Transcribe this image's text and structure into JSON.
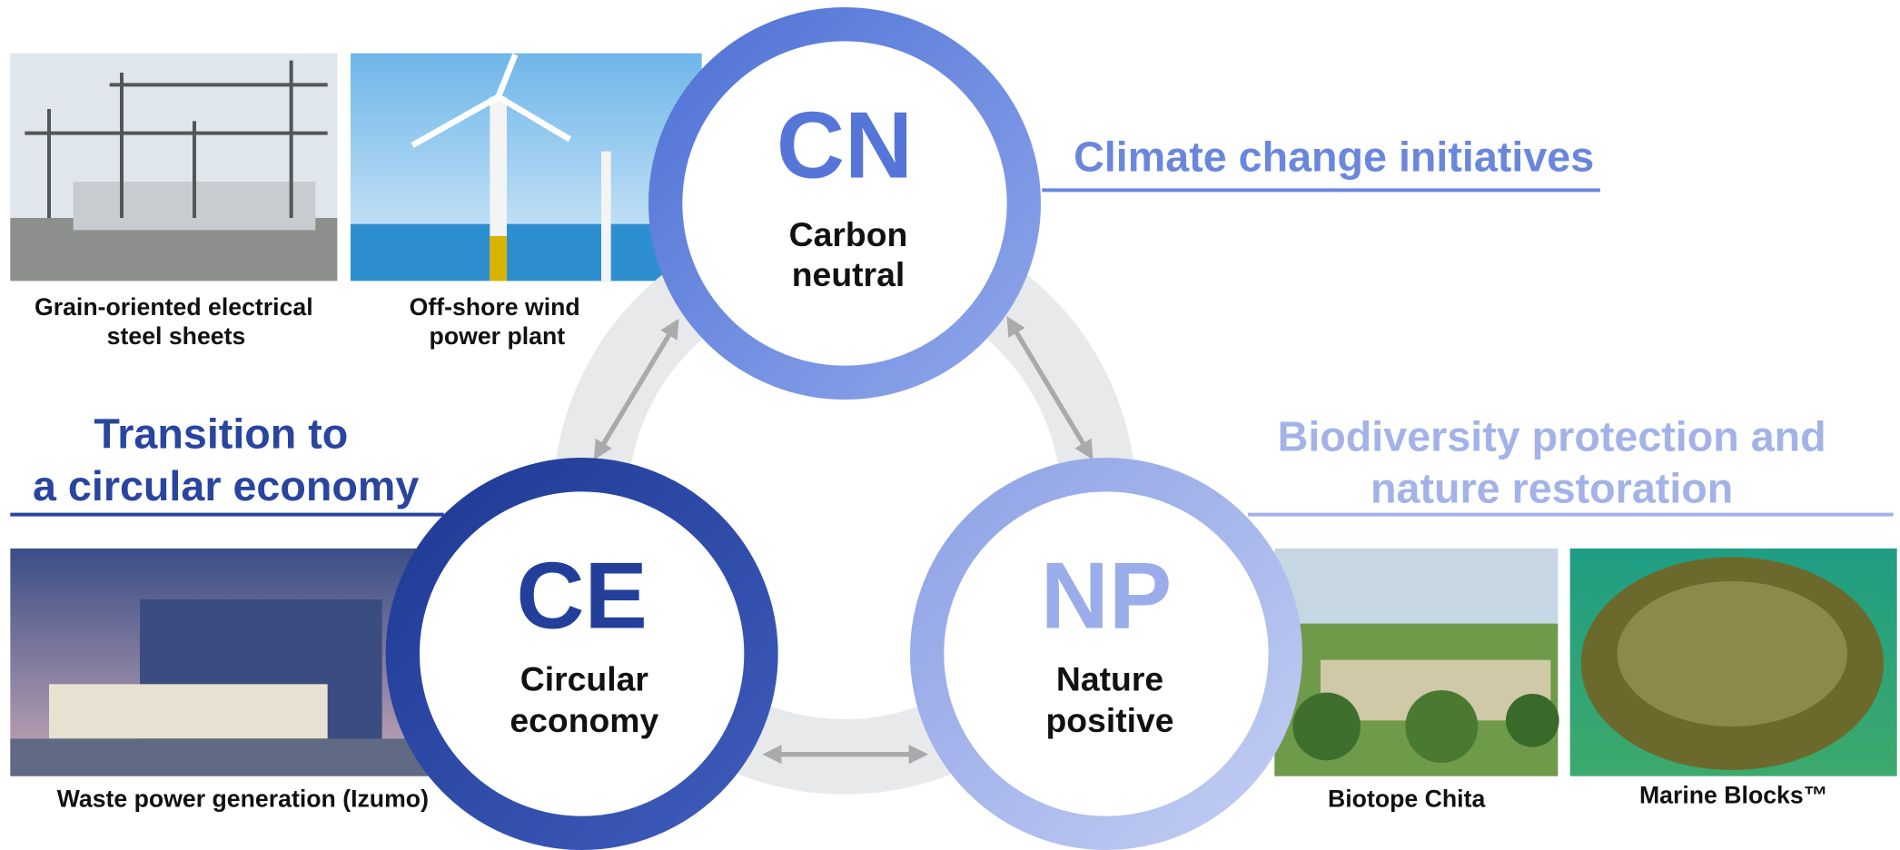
{
  "headings": {
    "climate": "Climate change initiatives",
    "circular": [
      "Transition to",
      "a circular economy"
    ],
    "biodiversity": [
      "Biodiversity protection and",
      "nature restoration"
    ]
  },
  "circles": [
    {
      "abbr": "CN",
      "label": [
        "Carbon",
        "neutral"
      ]
    },
    {
      "abbr": "CE",
      "label": [
        "Circular",
        "economy"
      ]
    },
    {
      "abbr": "NP",
      "label": [
        "Nature",
        "positive"
      ]
    }
  ],
  "photos": [
    {
      "caption": [
        "Grain-oriented electrical",
        "steel sheets"
      ]
    },
    {
      "caption": [
        "Off-shore wind",
        "power plant"
      ]
    },
    {
      "caption": [
        "Waste power generation (Izumo)"
      ]
    },
    {
      "caption": [
        "Biotope Chita"
      ]
    },
    {
      "caption": [
        "Marine Blocks™"
      ]
    }
  ]
}
